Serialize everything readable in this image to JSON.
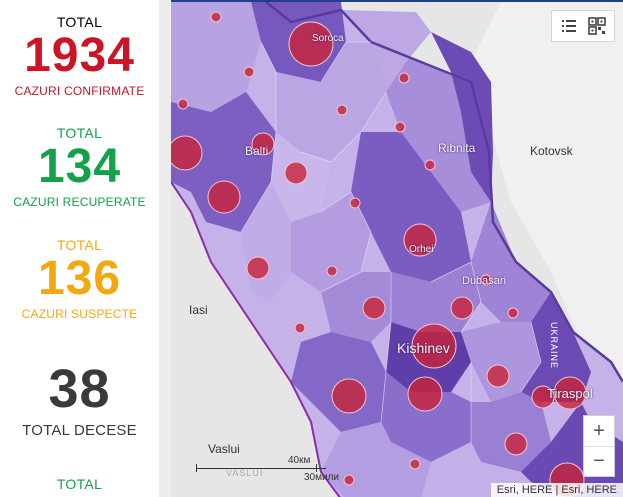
{
  "stats": [
    {
      "top_label": "TOTAL",
      "value": "1934",
      "sub_label": "CAZURI CONFIRMATE",
      "color": "#cc1426"
    },
    {
      "top_label": "TOTAL",
      "value": "134",
      "sub_label": "CAZURI RECUPERATE",
      "color": "#15a04a"
    },
    {
      "top_label": "TOTAL",
      "value": "136",
      "sub_label": "CAZURI SUSPECTE",
      "color": "#f5a70f"
    },
    {
      "top_label": "",
      "value": "38",
      "sub_label": "TOTAL DECESE",
      "color": "#3a3a3a"
    },
    {
      "top_label": "TOTAL",
      "value": "",
      "sub_label": "",
      "color": "#15a04a"
    }
  ],
  "map": {
    "labels": {
      "soroca": "Soroca",
      "balti": "Balti",
      "ribnita": "Ribnita",
      "kotovsk": "Kotovsk",
      "orhei": "Orhei",
      "iasi": "Iasi",
      "dubasari": "Dubasari",
      "kishinev": "Kishinev",
      "tiraspol": "Tiraspol",
      "vaslui": "Vaslui",
      "ukraine": "UKRAINE",
      "vaslui_county": "VASLUI"
    },
    "scale": {
      "km": "40км",
      "mi": "30мили"
    },
    "attribution": "Esri, HERE | Esri, HERE",
    "zoom_in": "+",
    "zoom_out": "−",
    "colors": {
      "region_dark": "#6a4ab0",
      "region_mid": "#8a6cc6",
      "region_light": "#ad96dd",
      "region_pale": "#c8b6ea",
      "bubble": "#c8233a",
      "border": "#6b3fb0"
    }
  }
}
